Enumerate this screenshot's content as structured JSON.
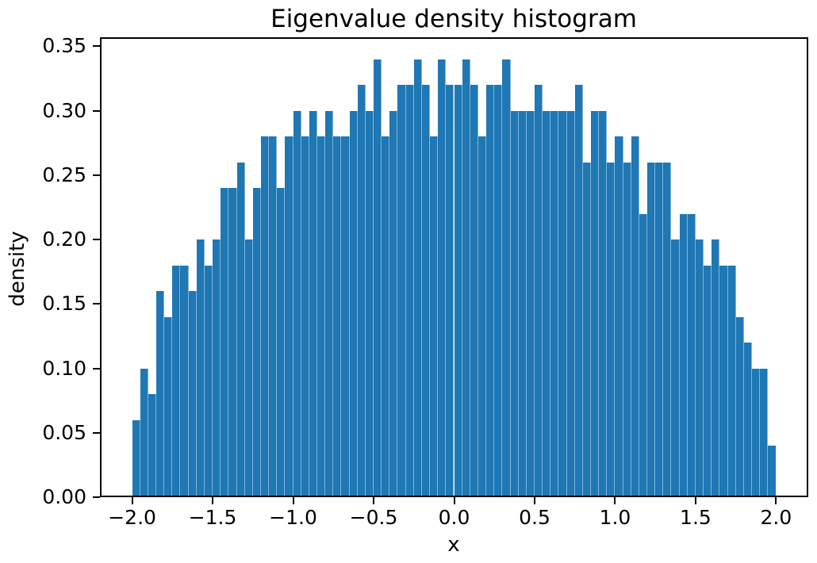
{
  "chart_data": {
    "type": "bar",
    "subtype": "histogram",
    "title": "Eigenvalue density histogram",
    "xlabel": "x",
    "ylabel": "density",
    "bar_color": "#1f77b4",
    "bar_seam_color": "rgba(255,255,255,0.45)",
    "spine_color": "#000000",
    "background_color": "#ffffff",
    "bin_start": -2.0,
    "bin_width": 0.05,
    "n_bins": 80,
    "values": [
      0.06,
      0.1,
      0.08,
      0.16,
      0.14,
      0.18,
      0.18,
      0.16,
      0.2,
      0.18,
      0.2,
      0.24,
      0.24,
      0.26,
      0.2,
      0.24,
      0.28,
      0.28,
      0.24,
      0.28,
      0.3,
      0.28,
      0.3,
      0.28,
      0.3,
      0.28,
      0.28,
      0.3,
      0.32,
      0.3,
      0.34,
      0.28,
      0.3,
      0.32,
      0.32,
      0.34,
      0.32,
      0.28,
      0.34,
      0.32,
      0.32,
      0.34,
      0.32,
      0.28,
      0.32,
      0.32,
      0.34,
      0.3,
      0.3,
      0.3,
      0.32,
      0.3,
      0.3,
      0.3,
      0.3,
      0.32,
      0.26,
      0.3,
      0.3,
      0.26,
      0.28,
      0.26,
      0.28,
      0.22,
      0.26,
      0.26,
      0.26,
      0.2,
      0.22,
      0.22,
      0.2,
      0.18,
      0.2,
      0.18,
      0.18,
      0.14,
      0.12,
      0.1,
      0.1,
      0.04
    ],
    "xlim": [
      -2.2,
      2.2
    ],
    "ylim": [
      0,
      0.357
    ],
    "x_ticks": {
      "values": [
        -2.0,
        -1.5,
        -1.0,
        -0.5,
        0.0,
        0.5,
        1.0,
        1.5,
        2.0
      ],
      "labels": [
        "−2.0",
        "−1.5",
        "−1.0",
        "−0.5",
        "0.0",
        "0.5",
        "1.0",
        "1.5",
        "2.0"
      ]
    },
    "y_ticks": {
      "values": [
        0.0,
        0.05,
        0.1,
        0.15,
        0.2,
        0.25,
        0.3,
        0.35
      ],
      "labels": [
        "0.00",
        "0.05",
        "0.10",
        "0.15",
        "0.20",
        "0.25",
        "0.30",
        "0.35"
      ]
    },
    "grid": false,
    "legend": null
  }
}
